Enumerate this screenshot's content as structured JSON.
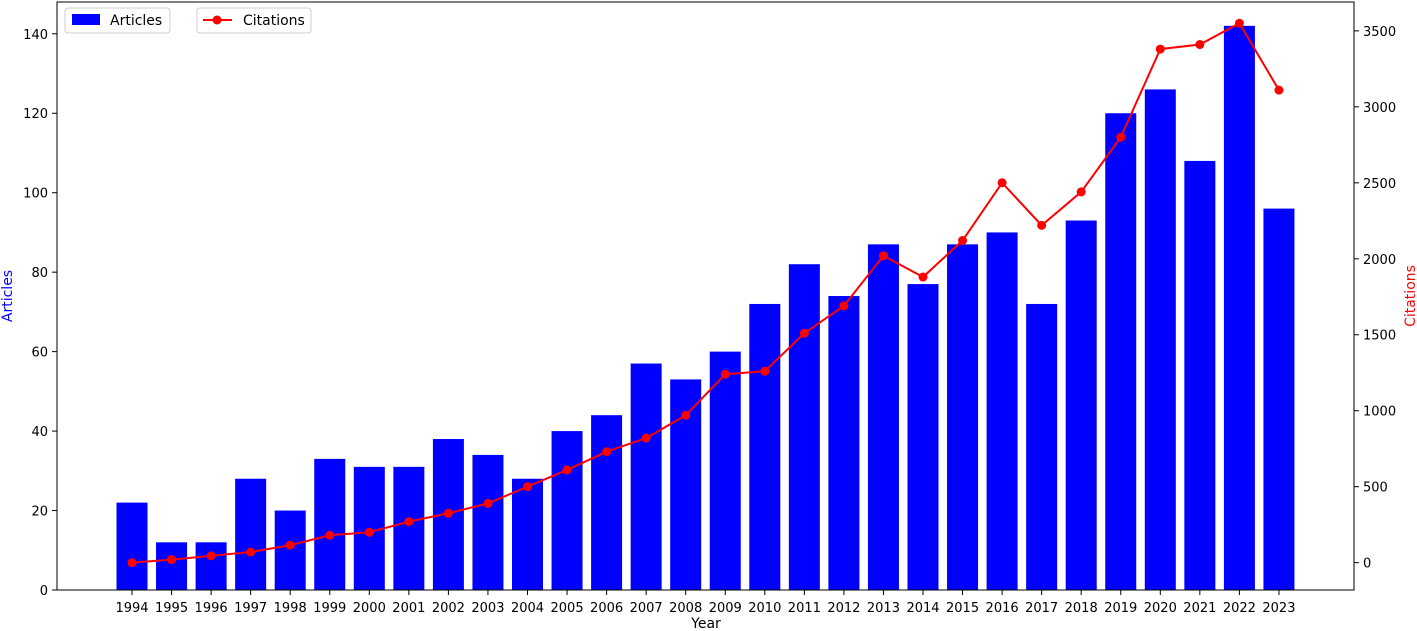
{
  "chart_data": {
    "type": "bar",
    "xlabel": "Year",
    "categories": [
      "1994",
      "1995",
      "1996",
      "1997",
      "1998",
      "1999",
      "2000",
      "2001",
      "2002",
      "2003",
      "2004",
      "2005",
      "2006",
      "2007",
      "2008",
      "2009",
      "2010",
      "2011",
      "2012",
      "2013",
      "2014",
      "2015",
      "2016",
      "2017",
      "2018",
      "2019",
      "2020",
      "2021",
      "2022",
      "2023"
    ],
    "series": [
      {
        "name": "Articles",
        "type": "bar",
        "axis": "left",
        "color": "#0000ff",
        "values": [
          22,
          12,
          12,
          28,
          20,
          33,
          31,
          31,
          38,
          34,
          28,
          40,
          44,
          57,
          53,
          60,
          72,
          82,
          74,
          87,
          77,
          87,
          90,
          72,
          93,
          120,
          126,
          108,
          142,
          96
        ]
      },
      {
        "name": "Citations",
        "type": "line",
        "axis": "right",
        "color": "#ff0000",
        "marker": "circle",
        "values": [
          0,
          20,
          45,
          70,
          115,
          180,
          200,
          270,
          325,
          390,
          500,
          610,
          730,
          820,
          970,
          1240,
          1260,
          1510,
          1690,
          2020,
          1880,
          2120,
          2500,
          2220,
          2440,
          2800,
          3380,
          3410,
          3550,
          3110
        ]
      }
    ],
    "y_left": {
      "label": "Articles",
      "label_color": "#0000ff",
      "ylim": [
        0,
        148
      ],
      "ticks": [
        0,
        20,
        40,
        60,
        80,
        100,
        120,
        140
      ]
    },
    "y_right": {
      "label": "Citations",
      "label_color": "#ff0000",
      "ylim": [
        -180,
        3690
      ],
      "ticks": [
        0,
        500,
        1000,
        1500,
        2000,
        2500,
        3000,
        3500
      ]
    },
    "grid": false,
    "legend": [
      {
        "name": "Articles",
        "placement": "top-left"
      },
      {
        "name": "Citations",
        "placement": "top-left"
      }
    ]
  }
}
